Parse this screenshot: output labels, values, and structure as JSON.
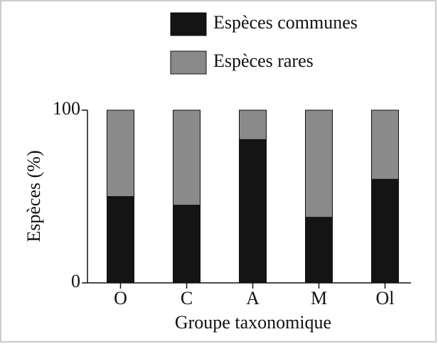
{
  "chart_data": {
    "type": "stacked_bar",
    "categories": [
      "O",
      "C",
      "A",
      "M",
      "Ol"
    ],
    "series": [
      {
        "name": "Espèces communes",
        "color": "#141414",
        "values": [
          50,
          45,
          83,
          38,
          60
        ]
      },
      {
        "name": "Espèces rares",
        "color": "#8a8a8a",
        "values": [
          50,
          55,
          17,
          62,
          40
        ]
      }
    ],
    "ylabel": "Espèces (%)",
    "xlabel": "Groupe taxonomique",
    "ylim": [
      0,
      100
    ],
    "yticks": [
      0,
      100
    ]
  }
}
